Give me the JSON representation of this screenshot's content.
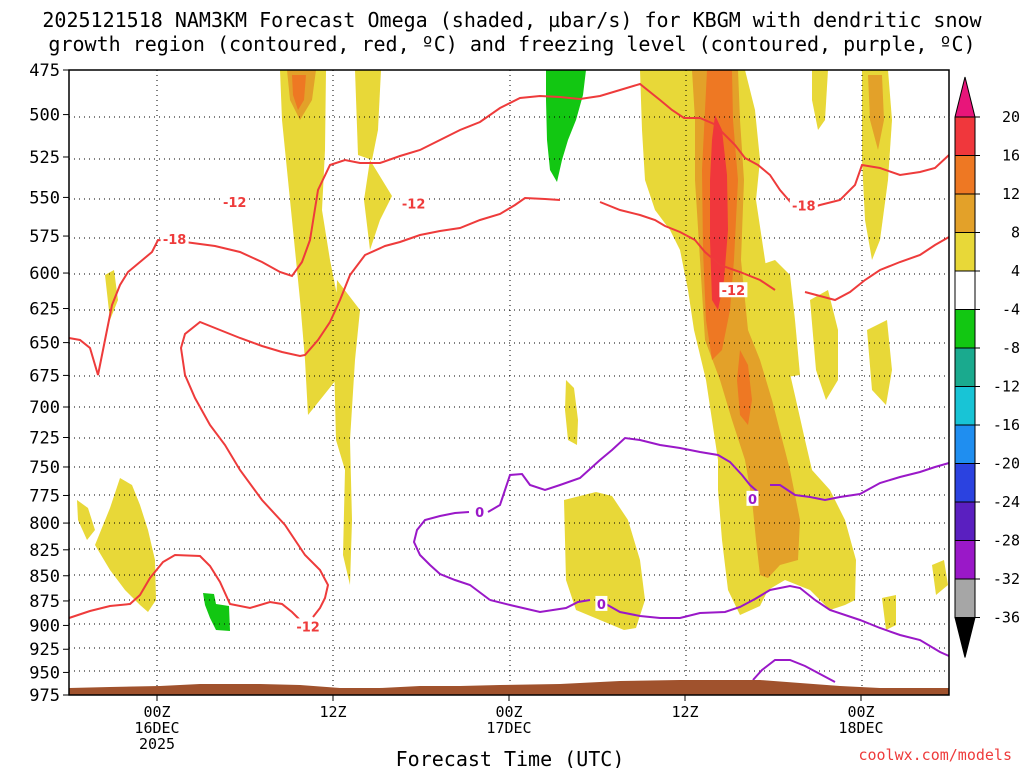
{
  "chart_data": {
    "type": "time-height cross section",
    "title_line1": "2025121518 NAM3KM Forecast Omega (shaded, µbar/s) for KBGM with dendritic snow",
    "title_line2": "growth region (contoured, red, ºC) and freezing level (contoured, purple, ºC)",
    "xlabel": "Forecast Time (UTC)",
    "credit": "coolwx.com/models",
    "y_axis": {
      "units": "hPa",
      "levels": [
        475,
        500,
        525,
        550,
        575,
        600,
        625,
        650,
        675,
        700,
        725,
        750,
        775,
        800,
        825,
        850,
        875,
        900,
        925,
        950,
        975
      ],
      "labels": [
        "475",
        "500",
        "525",
        "550",
        "575",
        "600",
        "625",
        "650",
        "675",
        "700",
        "725",
        "750",
        "775",
        "800",
        "825",
        "850",
        "875",
        "900",
        "925",
        "950",
        "975"
      ]
    },
    "x_axis": {
      "units": "forecast hours",
      "range": [
        -6,
        54
      ],
      "ticks": [
        {
          "hour": 0,
          "lines": [
            "00Z",
            "16DEC",
            "2025"
          ]
        },
        {
          "hour": 12,
          "lines": [
            "12Z"
          ]
        },
        {
          "hour": 24,
          "lines": [
            "00Z",
            "17DEC"
          ]
        },
        {
          "hour": 36,
          "lines": [
            "12Z"
          ]
        },
        {
          "hour": 48,
          "lines": [
            "00Z",
            "18DEC"
          ]
        }
      ]
    },
    "colorbar": {
      "units": "µbar/s",
      "labels": [
        "20",
        "16",
        "12",
        "8",
        "4",
        "-4",
        "-8",
        "-12",
        "-16",
        "-20",
        "-24",
        "-28",
        "-32",
        "-36"
      ],
      "colors": [
        "#e8157a",
        "#f0373c",
        "#ee7823",
        "#e3a129",
        "#e8d838",
        "#ffffff",
        "#12c712",
        "#1aaa8e",
        "#18c4d6",
        "#1f8ef0",
        "#2b42e0",
        "#5a1fc0",
        "#9a18c8",
        "#a6a6a6",
        "#000000"
      ]
    },
    "contour_labels": [
      {
        "text": "-18",
        "hour": 1.2,
        "level": 577,
        "color": "#ee3b3b"
      },
      {
        "text": "-12",
        "hour": 5.3,
        "level": 553,
        "color": "#ee3b3b"
      },
      {
        "text": "-12",
        "hour": 17.5,
        "level": 554,
        "color": "#ee3b3b"
      },
      {
        "text": "-12",
        "hour": 39.3,
        "level": 612,
        "color": "#ee3b3b"
      },
      {
        "text": "-18",
        "hour": 44.1,
        "level": 555,
        "color": "#ee3b3b"
      },
      {
        "text": "-12",
        "hour": 10.3,
        "level": 901,
        "color": "#ee3b3b"
      },
      {
        "text": "0",
        "hour": 22.0,
        "level": 790,
        "color": "#9a18c8"
      },
      {
        "text": "0",
        "hour": 30.3,
        "level": 878,
        "color": "#9a18c8"
      },
      {
        "text": "0",
        "hour": 40.6,
        "level": 778,
        "color": "#9a18c8"
      }
    ],
    "colors": {
      "dgz_contour": "#ee3b3b",
      "freezing_contour": "#9a18c8",
      "terrain": "#a0522d",
      "omega_4_8": "#e8d838",
      "omega_8_12": "#e3a129",
      "omega_12_16": "#ee7823",
      "omega_16_20": "#f0373c",
      "omega_neg_4_8": "#12c712"
    }
  }
}
